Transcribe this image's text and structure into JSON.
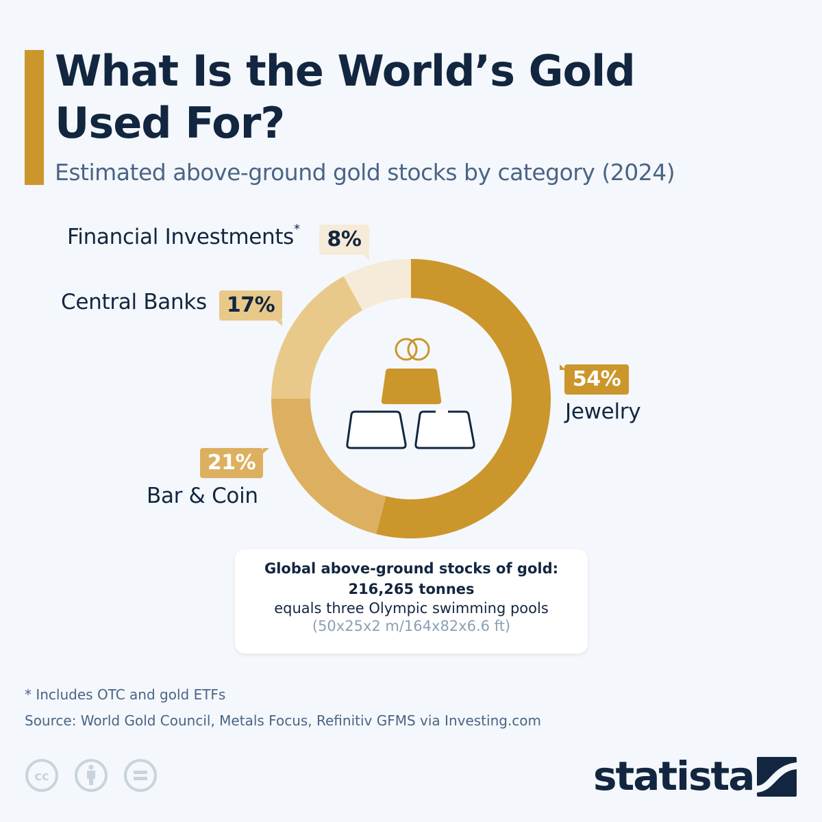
{
  "header": {
    "title": "What Is the World’s Gold Used For?",
    "subtitle": "Estimated above-ground gold stocks by category (2024)",
    "accent_color": "#cb962b"
  },
  "chart_data": {
    "type": "pie",
    "subtype": "donut",
    "title": "What Is the World’s Gold Used For?",
    "subtitle": "Estimated above-ground gold stocks by category (2024)",
    "categories": [
      "Jewelry",
      "Bar & Coin",
      "Central Banks",
      "Financial Investments*"
    ],
    "values": [
      54,
      21,
      17,
      8
    ],
    "unit": "%",
    "colors": [
      "#cb962b",
      "#dcb060",
      "#e8c98a",
      "#f6ead8"
    ],
    "start_angle_deg": 0,
    "direction": "clockwise",
    "labels": [
      {
        "category": "Jewelry",
        "text": "Jewelry",
        "value_label": "54%"
      },
      {
        "category": "Bar & Coin",
        "text": "Bar & Coin",
        "value_label": "21%"
      },
      {
        "category": "Central Banks",
        "text": "Central Banks",
        "value_label": "17%"
      },
      {
        "category": "Financial Investments",
        "text": "Financial Investments",
        "asterisk": "*",
        "value_label": "8%"
      }
    ],
    "legend": "none (direct labels)",
    "center_icon": "gold-bars-and-rings"
  },
  "infobox": {
    "line1": "Global above-ground stocks of gold:",
    "line2": "216,265 tonnes",
    "line3": "equals three Olympic swimming pools",
    "line4": "(50x25x2 m/164x82x6.6 ft)"
  },
  "footer": {
    "footnote": "* Includes OTC and gold ETFs",
    "source": "Source: World Gold Council, Metals Focus, Refinitiv GFMS via Investing.com",
    "license_icons": [
      "cc-icon",
      "attribution-icon",
      "no-derivatives-icon"
    ],
    "brand": "statista"
  }
}
